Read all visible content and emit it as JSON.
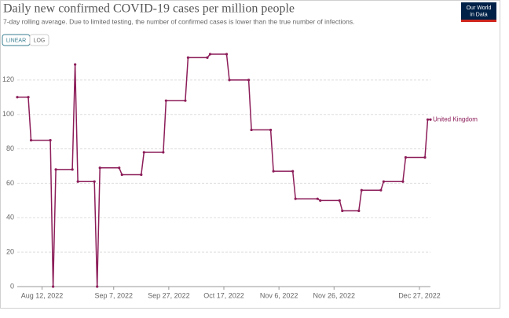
{
  "chart_data": {
    "type": "line",
    "title": "Daily new confirmed COVID-19 cases per million people",
    "subtitle": "7-day rolling average. Due to limited testing, the number of confirmed cases is lower than the true number of infections.",
    "x": [
      "2022-08-03",
      "2022-08-07",
      "2022-08-08",
      "2022-08-15",
      "2022-08-16",
      "2022-08-17",
      "2022-08-23",
      "2022-08-24",
      "2022-08-25",
      "2022-08-31",
      "2022-09-01",
      "2022-09-02",
      "2022-09-09",
      "2022-09-10",
      "2022-09-17",
      "2022-09-18",
      "2022-09-25",
      "2022-09-26",
      "2022-10-03",
      "2022-10-04",
      "2022-10-11",
      "2022-10-12",
      "2022-10-18",
      "2022-10-19",
      "2022-10-26",
      "2022-10-27",
      "2022-11-03",
      "2022-11-04",
      "2022-11-11",
      "2022-11-12",
      "2022-11-20",
      "2022-11-21",
      "2022-11-28",
      "2022-11-29",
      "2022-12-05",
      "2022-12-06",
      "2022-12-13",
      "2022-12-14",
      "2022-12-21",
      "2022-12-22",
      "2022-12-29",
      "2022-12-30",
      "2022-12-31"
    ],
    "series": [
      {
        "name": "United Kingdom",
        "color": "#8c1d59",
        "values": [
          110,
          110,
          85,
          85,
          0,
          68,
          68,
          129,
          61,
          61,
          0,
          69,
          69,
          65,
          65,
          78,
          78,
          108,
          108,
          133,
          133,
          135,
          135,
          120,
          120,
          91,
          91,
          67,
          67,
          51,
          51,
          50,
          50,
          44,
          44,
          56,
          56,
          61,
          61,
          75,
          75,
          97,
          97
        ]
      }
    ],
    "xlim": [
      "2022-08-03",
      "2022-12-31"
    ],
    "xticks": [
      {
        "value": "2022-08-12",
        "label": "Aug 12, 2022"
      },
      {
        "value": "2022-09-07",
        "label": "Sep 7, 2022"
      },
      {
        "value": "2022-09-27",
        "label": "Sep 27, 2022"
      },
      {
        "value": "2022-10-17",
        "label": "Oct 17, 2022"
      },
      {
        "value": "2022-11-06",
        "label": "Nov 6, 2022"
      },
      {
        "value": "2022-11-26",
        "label": "Nov 26, 2022"
      },
      {
        "value": "2022-12-27",
        "label": "Dec 27, 2022"
      }
    ],
    "ylim": [
      0,
      140
    ],
    "yticks": [
      0,
      20,
      40,
      60,
      80,
      100,
      120
    ],
    "grid": true
  },
  "controls": [
    "LINEAR",
    "LOG"
  ],
  "logo": [
    "Our World",
    "in Data"
  ]
}
